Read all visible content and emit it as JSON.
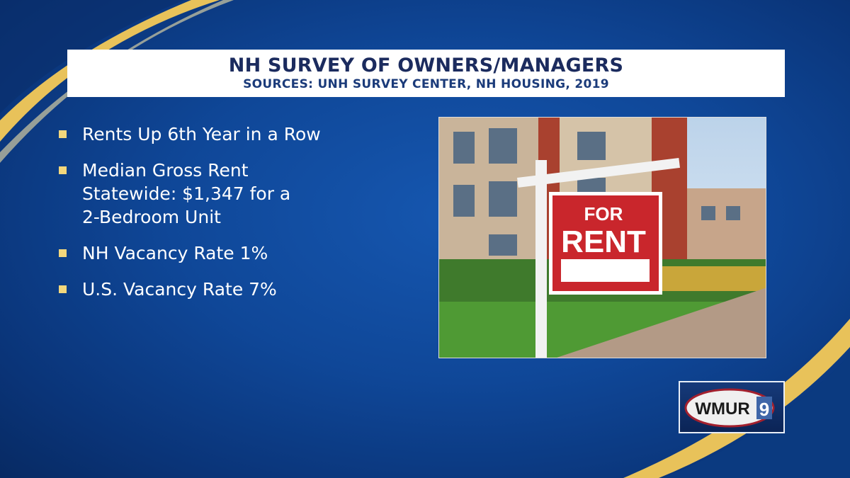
{
  "header": {
    "title": "NH SURVEY OF OWNERS/MANAGERS",
    "subtitle": "SOURCES: UNH SURVEY CENTER, NH HOUSING, 2019"
  },
  "bullets": [
    {
      "lines": [
        "Rents Up 6th Year in a Row"
      ]
    },
    {
      "lines": [
        "Median Gross Rent",
        "Statewide: $1,347 for a",
        "2-Bedroom Unit"
      ]
    },
    {
      "lines": [
        "NH Vacancy Rate 1%"
      ]
    },
    {
      "lines": [
        "U.S. Vacancy Rate 7%"
      ]
    }
  ],
  "photo": {
    "sign_line1": "FOR",
    "sign_line2": "RENT"
  },
  "logo": {
    "text": "WMUR",
    "channel": "9"
  },
  "colors": {
    "background": "#0f4798",
    "accent_gold": "#e8c25a",
    "bullet": "#f3d77c",
    "title_text": "#1b2b5e"
  }
}
